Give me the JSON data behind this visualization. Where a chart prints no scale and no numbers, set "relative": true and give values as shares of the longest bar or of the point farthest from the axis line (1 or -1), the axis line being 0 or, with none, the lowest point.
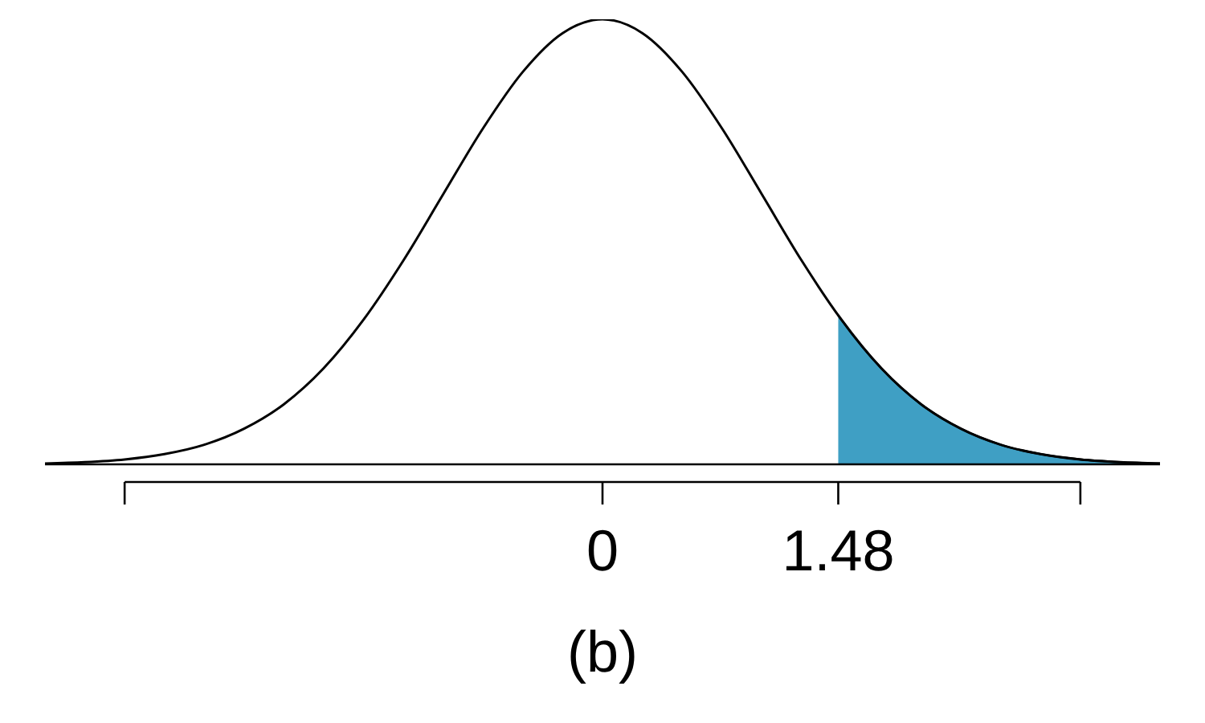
{
  "chart_data": {
    "type": "line",
    "relative": true,
    "xlabel": "(b)",
    "xlim": [
      -3.5,
      3.5
    ],
    "xticks": [
      {
        "value": -3,
        "label": null
      },
      0,
      1.48,
      {
        "value": 3,
        "label": null
      }
    ],
    "grid": false,
    "marker": "none",
    "line_style": "solid",
    "series": [
      {
        "type": "area",
        "color": "#3f9fc4",
        "x": [
          1.48,
          1.5,
          1.75,
          2,
          2.25,
          2.5,
          2.75,
          3,
          3.25,
          3.5
        ],
        "values": [
          0.335,
          0.325,
          0.216,
          0.135,
          0.08,
          0.044,
          0.023,
          0.011,
          0.005,
          0.002
        ]
      },
      {
        "color": "#000000",
        "x": [
          -3.5,
          -3.25,
          -3,
          -2.75,
          -2.5,
          -2.25,
          -2,
          -1.75,
          -1.5,
          -1.25,
          -1,
          -0.75,
          -0.5,
          -0.25,
          0,
          0.25,
          0.5,
          0.75,
          1,
          1.25,
          1.5,
          1.75,
          2,
          2.25,
          2.5,
          2.75,
          3,
          3.25,
          3.5
        ],
        "values": [
          0.002,
          0.005,
          0.011,
          0.023,
          0.044,
          0.08,
          0.135,
          0.216,
          0.325,
          0.458,
          0.607,
          0.755,
          0.882,
          0.969,
          1,
          0.969,
          0.882,
          0.755,
          0.607,
          0.458,
          0.325,
          0.216,
          0.135,
          0.08,
          0.044,
          0.023,
          0.011,
          0.005,
          0.002
        ]
      }
    ]
  }
}
